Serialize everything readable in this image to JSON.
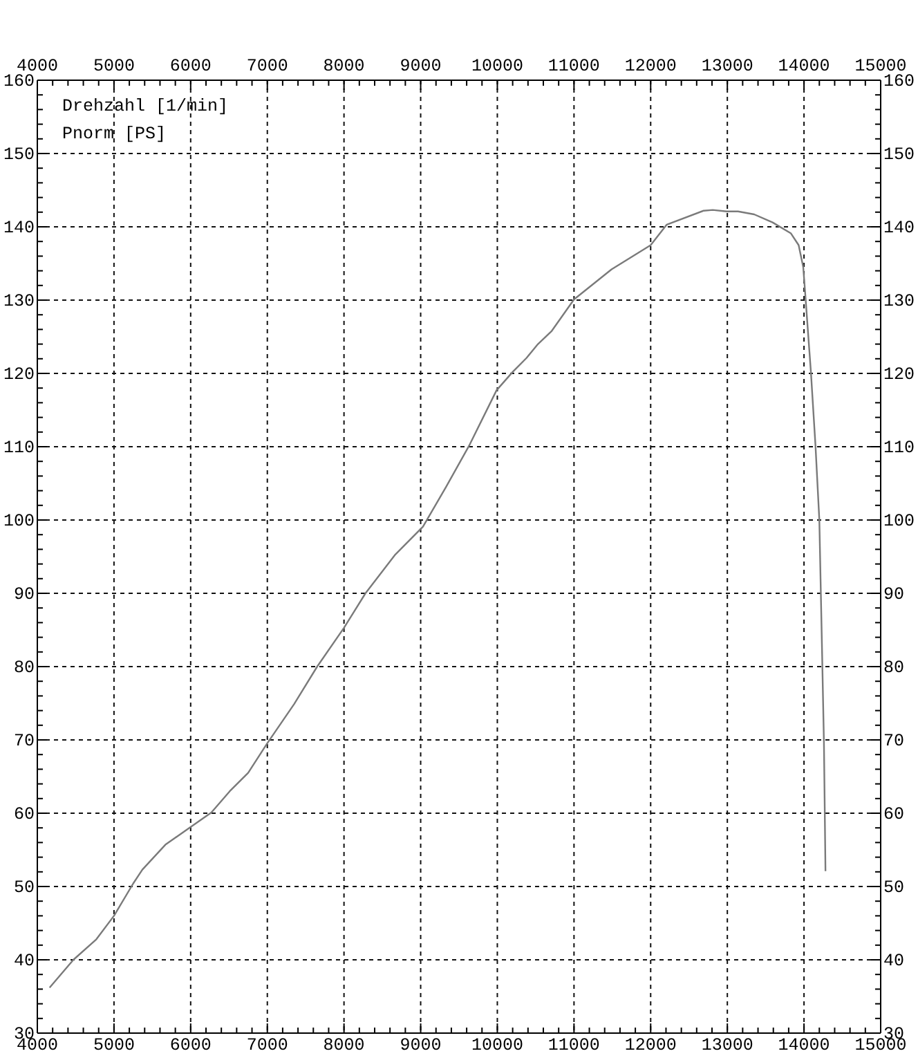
{
  "chart_data": {
    "type": "line",
    "xlabel": "Drehzahl [1/min]",
    "ylabel": "Pnorm [PS]",
    "x": [
      4160,
      4470,
      4770,
      5000,
      5250,
      5370,
      5670,
      5970,
      6270,
      6510,
      6750,
      6990,
      7350,
      7650,
      8000,
      8280,
      8670,
      9030,
      9330,
      9630,
      9990,
      10200,
      10380,
      10530,
      10710,
      11000,
      11490,
      12000,
      12210,
      12690,
      12810,
      12990,
      13140,
      13350,
      13590,
      13830,
      13930,
      13990,
      14020,
      14090,
      14150,
      14200,
      14220,
      14240,
      14260,
      14270,
      14280
    ],
    "series": [
      {
        "color": "#7a7a7a",
        "values": [
          36.2,
          40.0,
          42.8,
          46.0,
          50.4,
          52.3,
          55.7,
          57.9,
          60.1,
          63.0,
          65.5,
          69.4,
          74.9,
          80.0,
          85.3,
          90.0,
          95.3,
          99.1,
          104.5,
          110.1,
          117.7,
          120.2,
          122.1,
          124.0,
          125.8,
          130.1,
          134.2,
          137.5,
          140.3,
          142.2,
          142.3,
          142.1,
          142.1,
          141.7,
          140.6,
          139.1,
          137.5,
          134.5,
          130.3,
          120.2,
          110.1,
          100.0,
          89.9,
          79.8,
          69.6,
          60.9,
          52.1
        ]
      }
    ],
    "xlim": [
      4000,
      15000
    ],
    "xticks": [
      4000,
      {
        "value": 4200,
        "label": null
      },
      {
        "value": 4400,
        "label": null
      },
      {
        "value": 4600,
        "label": null
      },
      {
        "value": 4800,
        "label": null
      },
      5000,
      {
        "value": 5200,
        "label": null
      },
      {
        "value": 5400,
        "label": null
      },
      {
        "value": 5600,
        "label": null
      },
      {
        "value": 5800,
        "label": null
      },
      6000,
      {
        "value": 6200,
        "label": null
      },
      {
        "value": 6400,
        "label": null
      },
      {
        "value": 6600,
        "label": null
      },
      {
        "value": 6800,
        "label": null
      },
      7000,
      {
        "value": 7200,
        "label": null
      },
      {
        "value": 7400,
        "label": null
      },
      {
        "value": 7600,
        "label": null
      },
      {
        "value": 7800,
        "label": null
      },
      8000,
      {
        "value": 8200,
        "label": null
      },
      {
        "value": 8400,
        "label": null
      },
      {
        "value": 8600,
        "label": null
      },
      {
        "value": 8800,
        "label": null
      },
      9000,
      {
        "value": 9200,
        "label": null
      },
      {
        "value": 9400,
        "label": null
      },
      {
        "value": 9600,
        "label": null
      },
      {
        "value": 9800,
        "label": null
      },
      10000,
      {
        "value": 10200,
        "label": null
      },
      {
        "value": 10400,
        "label": null
      },
      {
        "value": 10600,
        "label": null
      },
      {
        "value": 10800,
        "label": null
      },
      11000,
      {
        "value": 11200,
        "label": null
      },
      {
        "value": 11400,
        "label": null
      },
      {
        "value": 11600,
        "label": null
      },
      {
        "value": 11800,
        "label": null
      },
      12000,
      {
        "value": 12200,
        "label": null
      },
      {
        "value": 12400,
        "label": null
      },
      {
        "value": 12600,
        "label": null
      },
      {
        "value": 12800,
        "label": null
      },
      13000,
      {
        "value": 13200,
        "label": null
      },
      {
        "value": 13400,
        "label": null
      },
      {
        "value": 13600,
        "label": null
      },
      {
        "value": 13800,
        "label": null
      },
      14000,
      {
        "value": 14200,
        "label": null
      },
      {
        "value": 14400,
        "label": null
      },
      {
        "value": 14600,
        "label": null
      },
      {
        "value": 14800,
        "label": null
      },
      15000
    ],
    "x2lim": [
      4000,
      15000
    ],
    "x2ticks": [
      4000,
      {
        "value": 4200,
        "label": null
      },
      {
        "value": 4400,
        "label": null
      },
      {
        "value": 4600,
        "label": null
      },
      {
        "value": 4800,
        "label": null
      },
      5000,
      {
        "value": 5200,
        "label": null
      },
      {
        "value": 5400,
        "label": null
      },
      {
        "value": 5600,
        "label": null
      },
      {
        "value": 5800,
        "label": null
      },
      6000,
      {
        "value": 6200,
        "label": null
      },
      {
        "value": 6400,
        "label": null
      },
      {
        "value": 6600,
        "label": null
      },
      {
        "value": 6800,
        "label": null
      },
      7000,
      {
        "value": 7200,
        "label": null
      },
      {
        "value": 7400,
        "label": null
      },
      {
        "value": 7600,
        "label": null
      },
      {
        "value": 7800,
        "label": null
      },
      8000,
      {
        "value": 8200,
        "label": null
      },
      {
        "value": 8400,
        "label": null
      },
      {
        "value": 8600,
        "label": null
      },
      {
        "value": 8800,
        "label": null
      },
      9000,
      {
        "value": 9200,
        "label": null
      },
      {
        "value": 9400,
        "label": null
      },
      {
        "value": 9600,
        "label": null
      },
      {
        "value": 9800,
        "label": null
      },
      10000,
      {
        "value": 10200,
        "label": null
      },
      {
        "value": 10400,
        "label": null
      },
      {
        "value": 10600,
        "label": null
      },
      {
        "value": 10800,
        "label": null
      },
      11000,
      {
        "value": 11200,
        "label": null
      },
      {
        "value": 11400,
        "label": null
      },
      {
        "value": 11600,
        "label": null
      },
      {
        "value": 11800,
        "label": null
      },
      12000,
      {
        "value": 12200,
        "label": null
      },
      {
        "value": 12400,
        "label": null
      },
      {
        "value": 12600,
        "label": null
      },
      {
        "value": 12800,
        "label": null
      },
      13000,
      {
        "value": 13200,
        "label": null
      },
      {
        "value": 13400,
        "label": null
      },
      {
        "value": 13600,
        "label": null
      },
      {
        "value": 13800,
        "label": null
      },
      14000,
      {
        "value": 14200,
        "label": null
      },
      {
        "value": 14400,
        "label": null
      },
      {
        "value": 14600,
        "label": null
      },
      {
        "value": 14800,
        "label": null
      },
      15000
    ],
    "ylim": [
      30,
      160
    ],
    "yticks": [
      30,
      {
        "value": 32,
        "label": null
      },
      {
        "value": 34,
        "label": null
      },
      {
        "value": 36,
        "label": null
      },
      {
        "value": 38,
        "label": null
      },
      40,
      {
        "value": 42,
        "label": null
      },
      {
        "value": 44,
        "label": null
      },
      {
        "value": 46,
        "label": null
      },
      {
        "value": 48,
        "label": null
      },
      50,
      {
        "value": 52,
        "label": null
      },
      {
        "value": 54,
        "label": null
      },
      {
        "value": 56,
        "label": null
      },
      {
        "value": 58,
        "label": null
      },
      60,
      {
        "value": 62,
        "label": null
      },
      {
        "value": 64,
        "label": null
      },
      {
        "value": 66,
        "label": null
      },
      {
        "value": 68,
        "label": null
      },
      70,
      {
        "value": 72,
        "label": null
      },
      {
        "value": 74,
        "label": null
      },
      {
        "value": 76,
        "label": null
      },
      {
        "value": 78,
        "label": null
      },
      80,
      {
        "value": 82,
        "label": null
      },
      {
        "value": 84,
        "label": null
      },
      {
        "value": 86,
        "label": null
      },
      {
        "value": 88,
        "label": null
      },
      90,
      {
        "value": 92,
        "label": null
      },
      {
        "value": 94,
        "label": null
      },
      {
        "value": 96,
        "label": null
      },
      {
        "value": 98,
        "label": null
      },
      100,
      {
        "value": 102,
        "label": null
      },
      {
        "value": 104,
        "label": null
      },
      {
        "value": 106,
        "label": null
      },
      {
        "value": 108,
        "label": null
      },
      110,
      {
        "value": 112,
        "label": null
      },
      {
        "value": 114,
        "label": null
      },
      {
        "value": 116,
        "label": null
      },
      {
        "value": 118,
        "label": null
      },
      120,
      {
        "value": 122,
        "label": null
      },
      {
        "value": 124,
        "label": null
      },
      {
        "value": 126,
        "label": null
      },
      {
        "value": 128,
        "label": null
      },
      130,
      {
        "value": 132,
        "label": null
      },
      {
        "value": 134,
        "label": null
      },
      {
        "value": 136,
        "label": null
      },
      {
        "value": 138,
        "label": null
      },
      140,
      {
        "value": 142,
        "label": null
      },
      {
        "value": 144,
        "label": null
      },
      {
        "value": 146,
        "label": null
      },
      {
        "value": 148,
        "label": null
      },
      150,
      {
        "value": 152,
        "label": null
      },
      {
        "value": 154,
        "label": null
      },
      {
        "value": 156,
        "label": null
      },
      {
        "value": 158,
        "label": null
      },
      160
    ],
    "y2lim": [
      30,
      160
    ],
    "y2ticks": [
      30,
      {
        "value": 32,
        "label": null
      },
      {
        "value": 34,
        "label": null
      },
      {
        "value": 36,
        "label": null
      },
      {
        "value": 38,
        "label": null
      },
      40,
      {
        "value": 42,
        "label": null
      },
      {
        "value": 44,
        "label": null
      },
      {
        "value": 46,
        "label": null
      },
      {
        "value": 48,
        "label": null
      },
      50,
      {
        "value": 52,
        "label": null
      },
      {
        "value": 54,
        "label": null
      },
      {
        "value": 56,
        "label": null
      },
      {
        "value": 58,
        "label": null
      },
      60,
      {
        "value": 62,
        "label": null
      },
      {
        "value": 64,
        "label": null
      },
      {
        "value": 66,
        "label": null
      },
      {
        "value": 68,
        "label": null
      },
      70,
      {
        "value": 72,
        "label": null
      },
      {
        "value": 74,
        "label": null
      },
      {
        "value": 76,
        "label": null
      },
      {
        "value": 78,
        "label": null
      },
      80,
      {
        "value": 82,
        "label": null
      },
      {
        "value": 84,
        "label": null
      },
      {
        "value": 86,
        "label": null
      },
      {
        "value": 88,
        "label": null
      },
      90,
      {
        "value": 92,
        "label": null
      },
      {
        "value": 94,
        "label": null
      },
      {
        "value": 96,
        "label": null
      },
      {
        "value": 98,
        "label": null
      },
      100,
      {
        "value": 102,
        "label": null
      },
      {
        "value": 104,
        "label": null
      },
      {
        "value": 106,
        "label": null
      },
      {
        "value": 108,
        "label": null
      },
      110,
      {
        "value": 112,
        "label": null
      },
      {
        "value": 114,
        "label": null
      },
      {
        "value": 116,
        "label": null
      },
      {
        "value": 118,
        "label": null
      },
      120,
      {
        "value": 122,
        "label": null
      },
      {
        "value": 124,
        "label": null
      },
      {
        "value": 126,
        "label": null
      },
      {
        "value": 128,
        "label": null
      },
      130,
      {
        "value": 132,
        "label": null
      },
      {
        "value": 134,
        "label": null
      },
      {
        "value": 136,
        "label": null
      },
      {
        "value": 138,
        "label": null
      },
      140,
      {
        "value": 142,
        "label": null
      },
      {
        "value": 144,
        "label": null
      },
      {
        "value": 146,
        "label": null
      },
      {
        "value": 148,
        "label": null
      },
      150,
      {
        "value": 152,
        "label": null
      },
      {
        "value": 154,
        "label": null
      },
      {
        "value": 156,
        "label": null
      },
      {
        "value": 158,
        "label": null
      },
      160
    ],
    "grid": true
  }
}
